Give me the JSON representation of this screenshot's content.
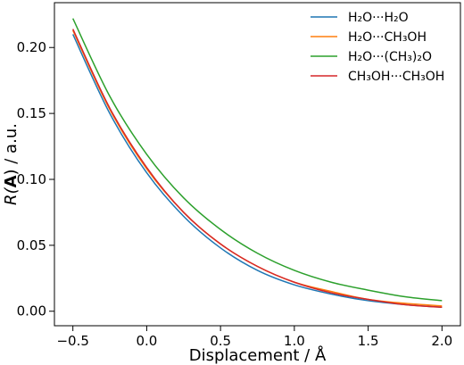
{
  "chart_data": {
    "type": "line",
    "xlabel": "Displacement / Å",
    "ylabel": {
      "prefix": "R(",
      "bold": "A",
      "suffix": ") / a.u."
    },
    "xlim": [
      -0.625,
      2.125
    ],
    "ylim": [
      -0.011,
      0.234
    ],
    "xticks": [
      "-0.5",
      "0.0",
      "0.5",
      "1.0",
      "1.5",
      "2.0"
    ],
    "yticks": [
      "0.00",
      "0.05",
      "0.10",
      "0.15",
      "0.20"
    ],
    "grid": false,
    "legend_position": "top-right",
    "x": [
      -0.5,
      -0.25,
      0.0,
      0.25,
      0.5,
      0.75,
      1.0,
      1.25,
      1.5,
      1.75,
      2.0
    ],
    "series": [
      {
        "name": "H₂O···H₂O",
        "color": "#1f77b4",
        "values": [
          0.21,
          0.15,
          0.105,
          0.072,
          0.048,
          0.031,
          0.02,
          0.013,
          0.008,
          0.005,
          0.003
        ]
      },
      {
        "name": "H₂O···CH₃OH",
        "color": "#ff7f0e",
        "values": [
          0.213,
          0.153,
          0.108,
          0.075,
          0.051,
          0.034,
          0.022,
          0.015,
          0.009,
          0.006,
          0.004
        ]
      },
      {
        "name": "H₂O···(CH₃)₂O",
        "color": "#2ca02c",
        "values": [
          0.222,
          0.163,
          0.119,
          0.086,
          0.062,
          0.044,
          0.031,
          0.022,
          0.016,
          0.011,
          0.008
        ]
      },
      {
        "name": "CH₃OH···CH₃OH",
        "color": "#d62728",
        "values": [
          0.214,
          0.154,
          0.109,
          0.075,
          0.051,
          0.034,
          0.022,
          0.014,
          0.009,
          0.005,
          0.003
        ]
      }
    ]
  }
}
